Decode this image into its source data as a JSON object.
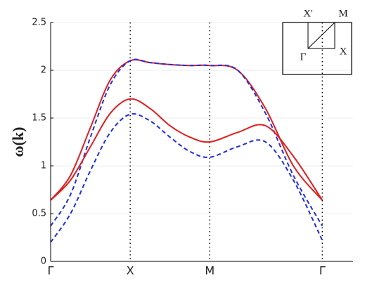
{
  "chart_data": {
    "type": "line",
    "y_label": "ω(k)",
    "x": [
      0,
      0.25,
      0.5,
      0.75,
      1,
      1.25,
      1.5,
      1.75,
      2,
      2.35,
      2.7,
      3.05,
      3.414
    ],
    "series": [
      {
        "color": "#e01e1e",
        "dash": false,
        "values": [
          0.64,
          0.9,
          1.4,
          1.9,
          2.1,
          2.08,
          2.06,
          2.05,
          2.05,
          2.0,
          1.6,
          1.0,
          0.64
        ]
      },
      {
        "color": "#1f2ee0",
        "dash": true,
        "values": [
          0.37,
          0.7,
          1.3,
          1.85,
          2.1,
          2.08,
          2.06,
          2.05,
          2.05,
          2.0,
          1.55,
          0.9,
          0.37
        ]
      },
      {
        "color": "#e01e1e",
        "dash": false,
        "values": [
          0.64,
          0.85,
          1.2,
          1.55,
          1.7,
          1.6,
          1.42,
          1.3,
          1.25,
          1.35,
          1.42,
          1.1,
          0.64
        ]
      },
      {
        "color": "#1f2ee0",
        "dash": true,
        "values": [
          0.2,
          0.5,
          0.95,
          1.35,
          1.54,
          1.47,
          1.3,
          1.15,
          1.09,
          1.2,
          1.25,
          0.85,
          0.22
        ]
      }
    ],
    "xlim": [
      0,
      3.8
    ],
    "xticks": [
      {
        "value": 0,
        "label": "Γ"
      },
      {
        "value": 1,
        "label": "X"
      },
      {
        "value": 2,
        "label": "M"
      },
      {
        "value": 3.414,
        "label": "Γ"
      }
    ],
    "ylim": [
      0,
      2.5
    ],
    "yticks": [
      0,
      0.5,
      1,
      1.5,
      2,
      2.5
    ],
    "grid": true,
    "inset_labels": [
      "X'",
      "M",
      "Γ",
      "X"
    ]
  }
}
